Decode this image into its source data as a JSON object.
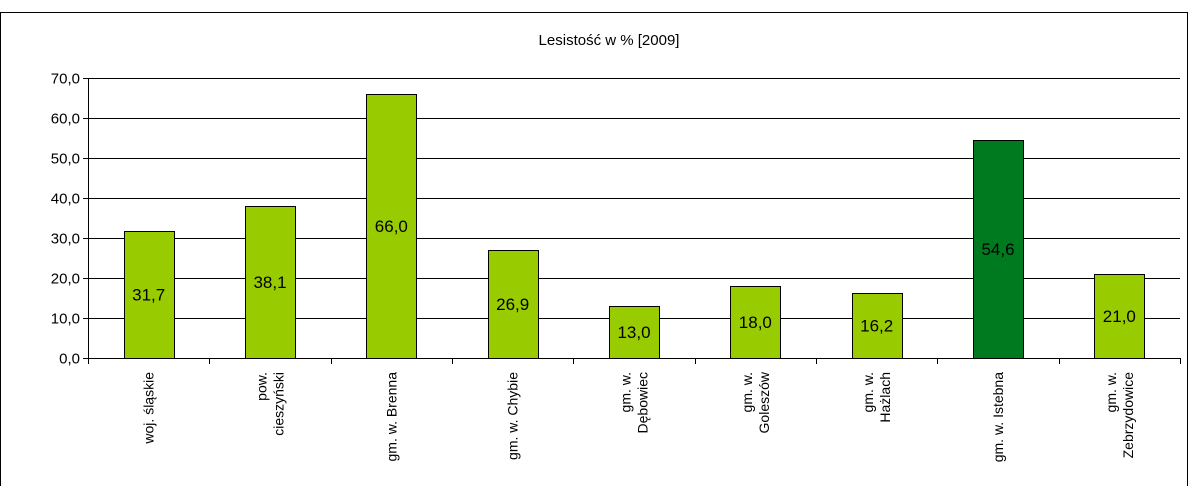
{
  "chart_data": {
    "type": "bar",
    "title": "Lesistość w % [2009]",
    "categories": [
      [
        "woj. śląskie"
      ],
      [
        "pow.",
        "cieszyński"
      ],
      [
        "gm. w. Brenna"
      ],
      [
        "gm. w. Chybie"
      ],
      [
        "gm. w.",
        "Dębowiec"
      ],
      [
        "gm. w.",
        "Goleszów"
      ],
      [
        "gm. w.",
        "Hażlach"
      ],
      [
        "gm. w. Istebna"
      ],
      [
        "gm. w.",
        "Zebrzydowice"
      ]
    ],
    "values": [
      31.7,
      38.1,
      66.0,
      26.9,
      13.0,
      18.0,
      16.2,
      54.6,
      21.0
    ],
    "data_labels": [
      "31,7",
      "38,1",
      "66,0",
      "26,9",
      "13,0",
      "18,0",
      "16,2",
      "54,6",
      "21,0"
    ],
    "ylim": [
      0,
      70
    ],
    "yticks": [
      0,
      10,
      20,
      30,
      40,
      50,
      60,
      70
    ],
    "ytick_labels": [
      "0,0",
      "10,0",
      "20,0",
      "30,0",
      "40,0",
      "50,0",
      "60,0",
      "70,0"
    ],
    "grid": true,
    "bar_color": "#99CC00",
    "highlight_color": "#007A1F",
    "highlight_index": 7
  }
}
